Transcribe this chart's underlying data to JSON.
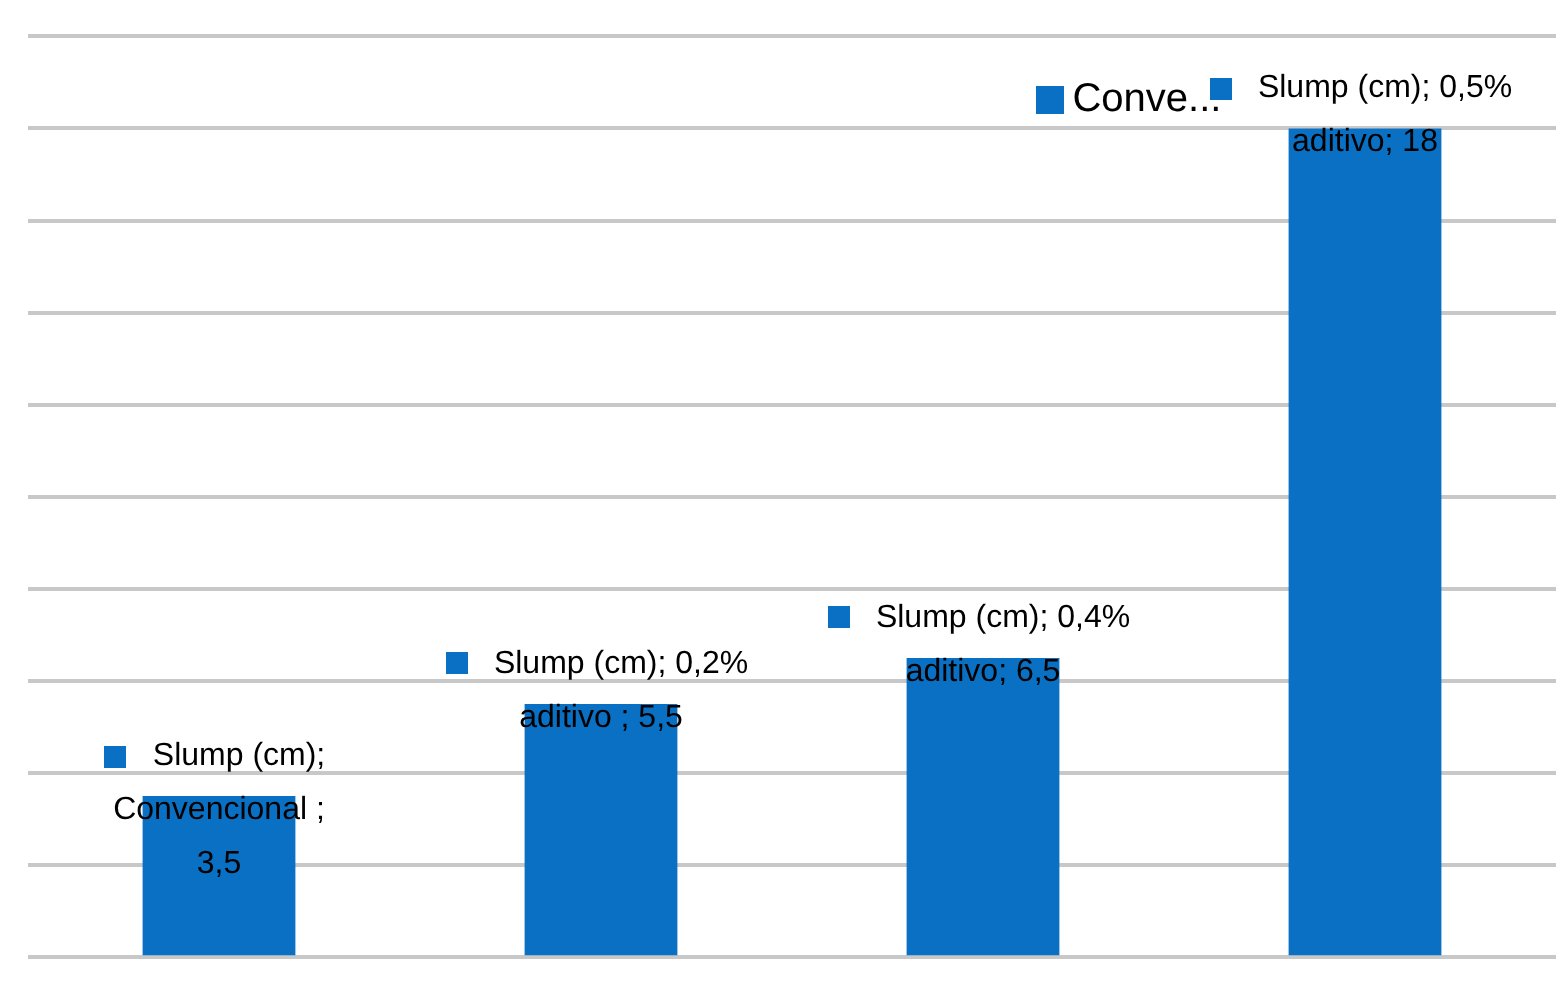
{
  "chart_data": {
    "type": "bar",
    "categories": [
      null,
      null,
      null,
      null
    ],
    "series": [
      {
        "color": "#0a70c4",
        "values": [
          3.5,
          5.5,
          6.5,
          18
        ],
        "value_labels": [
          "Slump (cm);\nConvencional ;\n3,5",
          "Slump (cm); 0,2%\naditivo ; 5,5",
          "Slump (cm); 0,4%\naditivo; 6,5",
          "Slump (cm); 0,5%\naditivo; 18"
        ]
      }
    ],
    "ylim": [
      0,
      20
    ],
    "yticks": [
      {
        "value": 0,
        "label": null
      },
      {
        "value": 2,
        "label": null
      },
      {
        "value": 4,
        "label": null
      },
      {
        "value": 6,
        "label": null
      },
      {
        "value": 8,
        "label": null
      },
      {
        "value": 10,
        "label": null
      },
      {
        "value": 12,
        "label": null
      },
      {
        "value": 14,
        "label": null
      },
      {
        "value": 16,
        "label": null
      },
      {
        "value": 18,
        "label": null
      },
      {
        "value": 20,
        "label": null
      }
    ],
    "grid": "y",
    "legend": false,
    "annotations": [
      "Conve..."
    ]
  }
}
